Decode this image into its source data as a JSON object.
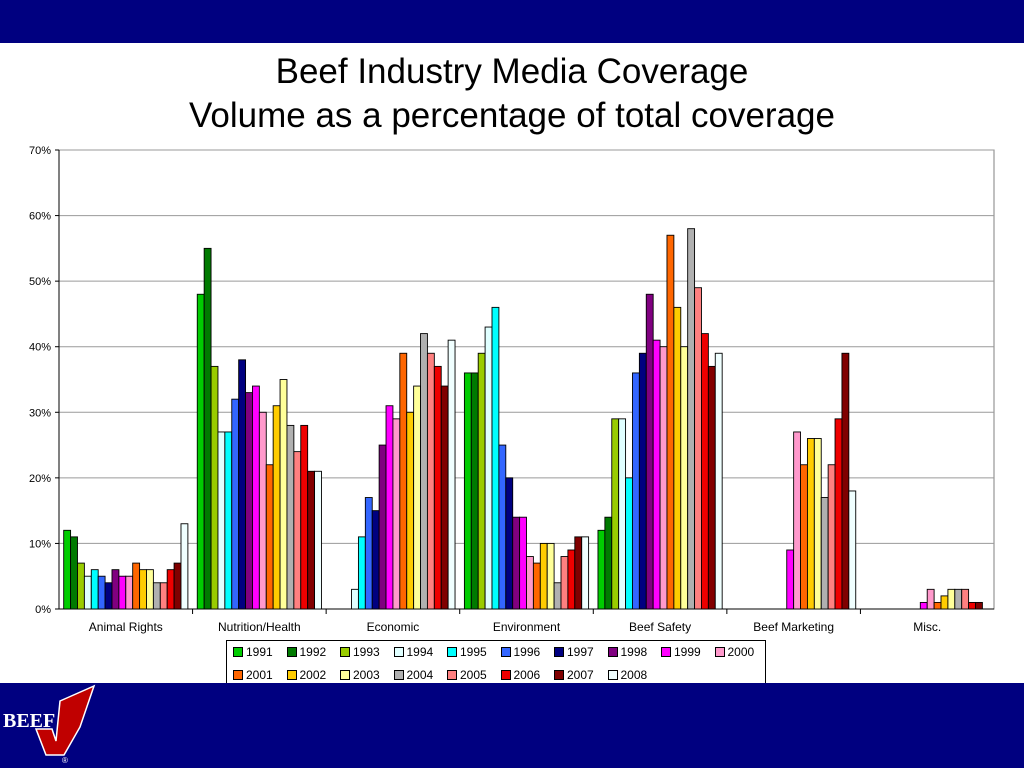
{
  "colors": {
    "band": "#000080",
    "logo_red": "#c00000"
  },
  "title_lines": [
    "Beef Industry Media Coverage",
    "Volume as a percentage of total coverage"
  ],
  "logo": {
    "text": "BEEF"
  },
  "chart_data": {
    "type": "bar",
    "categories": [
      "Animal Rights",
      "Nutrition/Health",
      "Economic",
      "Environment",
      "Beef Safety",
      "Beef Marketing",
      "Misc."
    ],
    "y_ticks": [
      "0%",
      "10%",
      "20%",
      "30%",
      "40%",
      "50%",
      "60%",
      "70%"
    ],
    "ylim": [
      0,
      70
    ],
    "grid": true,
    "legend_position": "bottom",
    "series": [
      {
        "name": "1991",
        "color": "#00cc00",
        "values": [
          12,
          48,
          null,
          36,
          12,
          null,
          null
        ]
      },
      {
        "name": "1992",
        "color": "#007a00",
        "values": [
          11,
          55,
          null,
          36,
          14,
          null,
          null
        ]
      },
      {
        "name": "1993",
        "color": "#99cc00",
        "values": [
          7,
          37,
          null,
          39,
          29,
          null,
          null
        ]
      },
      {
        "name": "1994",
        "color": "#e0ffff",
        "values": [
          5,
          27,
          3,
          43,
          29,
          null,
          null
        ]
      },
      {
        "name": "1995",
        "color": "#00ffff",
        "values": [
          6,
          27,
          11,
          46,
          20,
          null,
          null
        ]
      },
      {
        "name": "1996",
        "color": "#3366ff",
        "values": [
          5,
          32,
          17,
          25,
          36,
          null,
          null
        ]
      },
      {
        "name": "1997",
        "color": "#000080",
        "values": [
          4,
          38,
          15,
          20,
          39,
          null,
          null
        ]
      },
      {
        "name": "1998",
        "color": "#800080",
        "values": [
          6,
          33,
          25,
          14,
          48,
          null,
          null
        ]
      },
      {
        "name": "1999",
        "color": "#ff00ff",
        "values": [
          5,
          34,
          31,
          14,
          41,
          9,
          1
        ]
      },
      {
        "name": "2000",
        "color": "#ff99cc",
        "values": [
          5,
          30,
          29,
          8,
          40,
          27,
          3
        ]
      },
      {
        "name": "2001",
        "color": "#ff6600",
        "values": [
          7,
          22,
          39,
          7,
          57,
          22,
          1
        ]
      },
      {
        "name": "2002",
        "color": "#ffcc00",
        "values": [
          6,
          31,
          30,
          10,
          46,
          26,
          2
        ]
      },
      {
        "name": "2003",
        "color": "#ffff99",
        "values": [
          6,
          35,
          34,
          10,
          40,
          26,
          3
        ]
      },
      {
        "name": "2004",
        "color": "#b0b0b0",
        "values": [
          4,
          28,
          42,
          4,
          58,
          17,
          3
        ]
      },
      {
        "name": "2005",
        "color": "#ff8080",
        "values": [
          4,
          24,
          39,
          8,
          49,
          22,
          3
        ]
      },
      {
        "name": "2006",
        "color": "#ee0000",
        "values": [
          6,
          28,
          37,
          9,
          42,
          29,
          1
        ]
      },
      {
        "name": "2007",
        "color": "#800000",
        "values": [
          7,
          21,
          34,
          11,
          37,
          39,
          1
        ]
      },
      {
        "name": "2008",
        "color": "#f0ffff",
        "values": [
          13,
          21,
          41,
          11,
          39,
          18,
          null
        ]
      }
    ]
  }
}
